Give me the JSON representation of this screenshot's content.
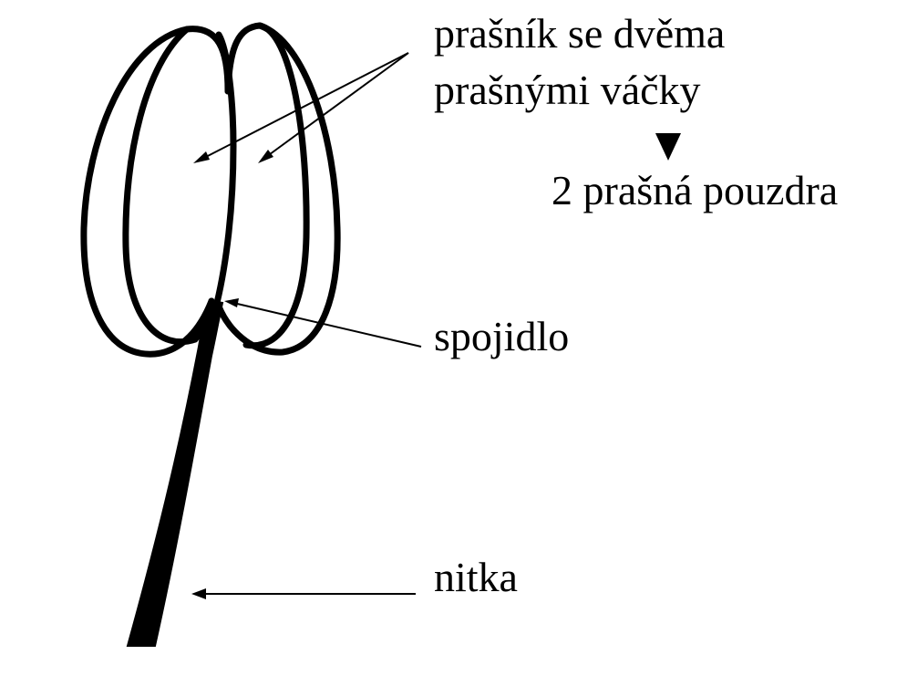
{
  "labels": {
    "anther": "prašník se dvěma",
    "anther_line2": "prašnými váčky",
    "result": "2 prašná pouzdra",
    "connective": "spojidlo",
    "filament": "nitka"
  }
}
